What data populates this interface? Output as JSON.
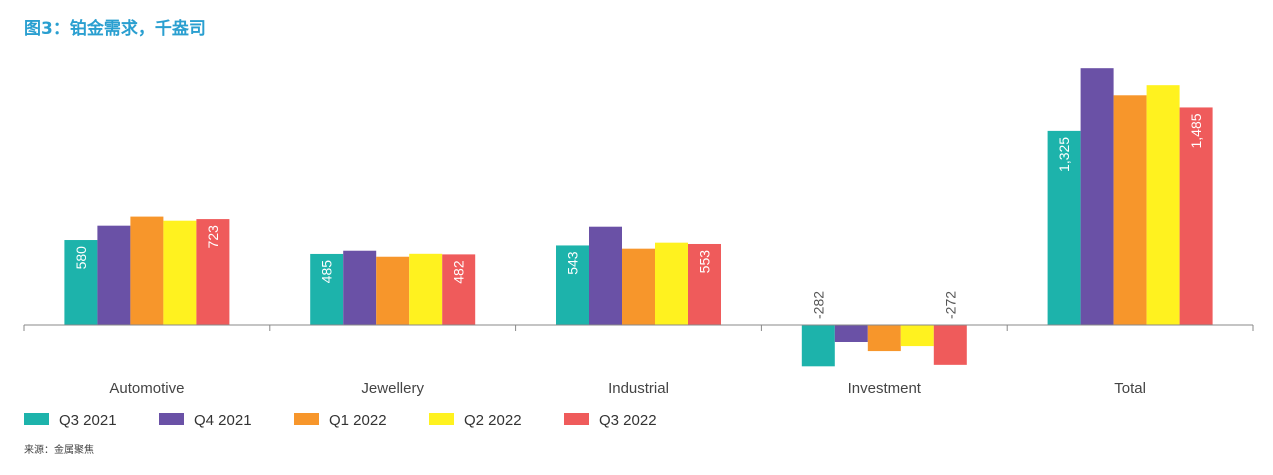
{
  "chart_data": {
    "type": "bar",
    "title": "图3：铂金需求，千盎司",
    "source": "来源：金属聚焦",
    "categories": [
      "Automotive",
      "Jewellery",
      "Industrial",
      "Investment",
      "Total"
    ],
    "series": [
      {
        "name": "Q3 2021",
        "color": "#1db3ab",
        "values": [
          580,
          485,
          543,
          -282,
          1325
        ],
        "labeled": true
      },
      {
        "name": "Q4 2021",
        "color": "#6a51a6",
        "values": [
          678,
          507,
          671,
          -116,
          1753
        ],
        "labeled": false
      },
      {
        "name": "Q1 2022",
        "color": "#f7962b",
        "values": [
          740,
          466,
          521,
          -178,
          1568
        ],
        "labeled": false
      },
      {
        "name": "Q2 2022",
        "color": "#fff21f",
        "values": [
          712,
          486,
          562,
          -144,
          1637
        ],
        "labeled": false
      },
      {
        "name": "Q3 2022",
        "color": "#ef5b5b",
        "values": [
          723,
          482,
          553,
          -272,
          1485
        ],
        "labeled": true
      }
    ],
    "data_labels": {
      "Q3 2021": [
        "580",
        "485",
        "543",
        "-282",
        "1,325"
      ],
      "Q3 2022": [
        "723",
        "482",
        "553",
        "-272",
        "1,485"
      ]
    },
    "ylim": [
      -300,
      1800
    ],
    "grid": false,
    "legend_position": "bottom-left"
  }
}
